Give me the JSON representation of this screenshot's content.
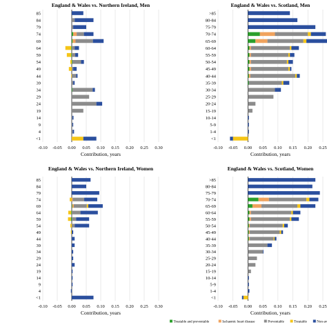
{
  "chart_data": [
    {
      "type": "bar",
      "stacked": true,
      "orientation": "horizontal",
      "title": "England & Wales vs. Northern Ireland, Men",
      "xlabel": "Contribution, years",
      "xlim": [
        -0.1,
        0.3
      ],
      "xticks": [
        "-0.10",
        "-0.05",
        "0.00",
        "0.05",
        "0.10",
        "0.15",
        "0.20",
        "0.25",
        "0.30"
      ],
      "grid": true,
      "categories": [
        "85",
        "84",
        "79",
        "74",
        "69",
        "64",
        "59",
        "54",
        "49",
        "44",
        "39",
        "34",
        "29",
        "24",
        "19",
        "14",
        "9",
        "4",
        "<1"
      ],
      "series": [
        {
          "values": [
            0.0,
            0.0,
            0.0,
            0.005,
            0.003,
            -0.002,
            -0.002,
            0.002,
            0.0,
            0.0,
            0.0,
            0.002,
            0.0,
            0.0,
            0.0,
            0.0,
            0.0,
            0.0,
            0.0
          ]
        },
        {
          "values": [
            0.0,
            0.0,
            0.0,
            0.012,
            0.01,
            0.0,
            0.0,
            0.0,
            0.0,
            0.0,
            0.0,
            0.0,
            0.0,
            0.0,
            0.0,
            0.0,
            0.0,
            0.0,
            0.0
          ]
        },
        {
          "values": [
            0.0,
            0.01,
            0.005,
            0.025,
            0.06,
            0.01,
            0.012,
            0.03,
            0.005,
            0.015,
            0.005,
            0.07,
            0.06,
            0.085,
            0.04,
            0.002,
            0.002,
            0.003,
            0.0
          ]
        },
        {
          "values": [
            0.0,
            0.0,
            0.0,
            0.0,
            0.0,
            -0.02,
            -0.015,
            -0.005,
            -0.01,
            -0.002,
            0.0,
            0.0,
            0.0,
            0.0,
            0.0,
            0.0,
            0.0,
            0.0,
            0.04
          ]
        },
        {
          "values": [
            0.04,
            0.065,
            0.045,
            0.033,
            0.037,
            0.015,
            0.01,
            0.01,
            0.012,
            0.005,
            0.005,
            0.008,
            0.0,
            0.02,
            0.0,
            0.004,
            0.003,
            0.005,
            0.045
          ]
        }
      ]
    },
    {
      "type": "bar",
      "stacked": true,
      "orientation": "horizontal",
      "title": "England & Wales vs. Scotland, Men",
      "xlabel": "Contribution, years",
      "xlim": [
        -0.1,
        0.25
      ],
      "xticks": [
        "-0.10",
        "-0.05",
        "0.00",
        "0.05",
        "0.10",
        "0.15",
        "0.20",
        "0.25"
      ],
      "grid": true,
      "categories": [
        ">85",
        "80-84",
        "75-79",
        "70-74",
        "65-69",
        "60-64",
        "55-59",
        "50-54",
        "45-49",
        "40-44",
        "35-39",
        "30-34",
        "25-29",
        "20-24",
        "15-19",
        "10-14",
        "5-9",
        "1-4",
        "<1"
      ],
      "series": [
        {
          "values": [
            0.0,
            0.0,
            0.0,
            0.04,
            0.025,
            0.005,
            0.005,
            0.005,
            0.005,
            0.003,
            0.003,
            0.0,
            0.0,
            0.0,
            0.0,
            0.0,
            0.0,
            0.0,
            0.0
          ]
        },
        {
          "values": [
            0.0,
            0.0,
            0.0,
            0.05,
            0.04,
            0.005,
            0.005,
            0.005,
            0.005,
            0.005,
            0.0,
            0.0,
            0.0,
            0.0,
            0.0,
            0.0,
            0.0,
            0.0,
            0.0
          ]
        },
        {
          "values": [
            0.0,
            0.0,
            0.0,
            0.11,
            0.12,
            0.13,
            0.125,
            0.12,
            0.125,
            0.15,
            0.11,
            0.09,
            0.085,
            0.025,
            0.015,
            0.0,
            0.0,
            0.0,
            0.0
          ]
        },
        {
          "values": [
            0.0,
            0.0,
            0.0,
            0.01,
            0.01,
            0.005,
            0.005,
            0.005,
            0.005,
            0.005,
            0.005,
            0.0,
            0.0,
            0.0,
            0.0,
            0.0,
            0.0,
            0.0,
            -0.05
          ]
        },
        {
          "values": [
            0.14,
            0.165,
            0.225,
            0.05,
            0.07,
            0.025,
            0.015,
            0.015,
            0.005,
            0.01,
            0.02,
            0.02,
            0.0,
            0.0,
            0.0,
            0.003,
            0.003,
            0.003,
            -0.01
          ]
        }
      ]
    },
    {
      "type": "bar",
      "stacked": true,
      "orientation": "horizontal",
      "title": "England & Wales vs. Northern Ireland, Women",
      "xlabel": "Contribution, years",
      "xlim": [
        -0.1,
        0.3
      ],
      "xticks": [
        "-0.10",
        "-0.05",
        "0.00",
        "0.05",
        "0.10",
        "0.15",
        "0.20",
        "0.25",
        "0.30"
      ],
      "grid": true,
      "categories": [
        "85",
        "84",
        "79",
        "74",
        "69",
        "64",
        "59",
        "54",
        "49",
        "44",
        "39",
        "34",
        "29",
        "24",
        "19",
        "14",
        "9",
        "4",
        "<1"
      ],
      "series": [
        {
          "values": [
            0.0,
            0.0,
            0.0,
            0.0,
            0.002,
            -0.002,
            -0.003,
            0.0,
            0.0,
            0.0,
            0.0,
            0.0,
            0.0,
            0.0,
            0.0,
            0.0,
            0.0,
            0.0,
            0.0
          ]
        },
        {
          "values": [
            0.0,
            0.0,
            0.0,
            0.003,
            0.005,
            0.0,
            0.0,
            0.0,
            0.0,
            0.0,
            0.0,
            0.0,
            0.0,
            0.0,
            0.0,
            0.0,
            0.0,
            0.0,
            0.0
          ]
        },
        {
          "values": [
            0.0,
            0.0,
            0.0,
            0.04,
            0.045,
            0.03,
            0.015,
            0.01,
            0.0,
            0.0,
            0.0,
            0.0,
            0.0,
            0.0,
            0.0,
            0.0,
            0.0,
            0.0,
            0.0
          ]
        },
        {
          "values": [
            0.0,
            0.0,
            0.0,
            -0.007,
            0.005,
            -0.01,
            -0.01,
            -0.005,
            -0.003,
            0.0,
            0.0,
            0.0,
            0.0,
            0.0,
            0.0,
            0.0,
            0.0,
            0.0,
            0.0
          ]
        },
        {
          "values": [
            0.065,
            0.05,
            0.095,
            0.045,
            0.05,
            0.06,
            0.045,
            0.05,
            0.005,
            0.01,
            0.01,
            0.005,
            0.005,
            0.01,
            0.003,
            0.003,
            0.003,
            -0.003,
            0.075
          ]
        }
      ]
    },
    {
      "type": "bar",
      "stacked": true,
      "orientation": "horizontal",
      "title": "England & Wales vs. Scotland, Women",
      "xlabel": "Contribution, years",
      "xlim": [
        -0.1,
        0.25
      ],
      "xticks": [
        "-0.10",
        "-0.05",
        "0.00",
        "0.05",
        "0.10",
        "0.15",
        "0.20",
        "0.25"
      ],
      "grid": true,
      "legend_position": "bottom",
      "categories": [
        ">85",
        "80-84",
        "75-79",
        "70-74",
        "65-69",
        "60-64",
        "55-59",
        "50-54",
        "45-49",
        "40-44",
        "35-39",
        "30-34",
        "25-29",
        "20-24",
        "15-19",
        "10-14",
        "5-9",
        "1-4",
        "<1"
      ],
      "series": [
        {
          "name": "Treatable and preventable",
          "color": "#2ca02c",
          "values": [
            0.0,
            0.0,
            0.0,
            0.035,
            0.015,
            0.005,
            0.005,
            0.003,
            0.003,
            0.003,
            0.0,
            0.0,
            0.0,
            0.0,
            0.0,
            0.0,
            0.0,
            0.0,
            0.0
          ]
        },
        {
          "name": "Ischaemic heart disease",
          "color": "#f0a35e",
          "values": [
            0.0,
            0.0,
            0.0,
            0.035,
            0.03,
            0.005,
            0.005,
            0.003,
            0.003,
            0.003,
            0.0,
            0.0,
            0.0,
            0.0,
            0.0,
            0.0,
            0.0,
            0.0,
            0.0
          ]
        },
        {
          "name": "Preventable",
          "color": "#8c8c8c",
          "values": [
            0.0,
            0.0,
            0.0,
            0.125,
            0.12,
            0.135,
            0.13,
            0.11,
            0.1,
            0.08,
            0.065,
            0.05,
            0.03,
            0.025,
            0.01,
            0.0,
            0.0,
            0.0,
            0.0
          ]
        },
        {
          "name": "Treatable",
          "color": "#f5c518",
          "values": [
            0.0,
            0.0,
            0.0,
            0.01,
            0.01,
            0.005,
            0.005,
            0.005,
            0.005,
            0.003,
            0.0,
            0.0,
            0.0,
            0.0,
            0.0,
            0.0,
            0.0,
            0.0,
            -0.015
          ]
        },
        {
          "name": "Non-avoidable",
          "color": "#2b4f9e",
          "values": [
            0.225,
            0.215,
            0.24,
            0.03,
            0.05,
            0.025,
            0.025,
            0.012,
            0.006,
            0.006,
            0.015,
            0.002,
            0.0,
            0.0,
            0.0,
            0.003,
            0.003,
            0.005,
            -0.005
          ]
        }
      ]
    }
  ]
}
